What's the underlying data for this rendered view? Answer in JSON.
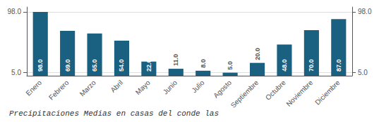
{
  "chart_data": {
    "type": "bar",
    "title": "Precipitaciones Medias en casas del conde las",
    "categories": [
      "Enero",
      "Febrero",
      "Marzo",
      "Abril",
      "Mayo",
      "Junio",
      "Julio",
      "Agosto",
      "Septiembre",
      "Octubre",
      "Noviembre",
      "Diciembre"
    ],
    "values": [
      98.0,
      69.0,
      65.0,
      54.0,
      22.0,
      11.0,
      8.0,
      5.0,
      20.0,
      48.0,
      70.0,
      87.0
    ],
    "value_labels": [
      "98.0",
      "69.0",
      "65.0",
      "54.0",
      "22.0",
      "11.0",
      "8.0",
      "5.0",
      "20.0",
      "48.0",
      "70.0",
      "87.0"
    ],
    "data_labels": true,
    "color": "#1a6080",
    "ylim": [
      0.35,
      105.44
    ],
    "yticks": [
      {
        "value": 5,
        "label": "5.0"
      },
      {
        "value": 98,
        "label": "98.0"
      }
    ],
    "y2lim": [
      0.35,
      105.44
    ],
    "y2ticks": [
      {
        "value": 5,
        "label": "5.0"
      },
      {
        "value": 98,
        "label": "98.0"
      }
    ],
    "grid": true
  }
}
